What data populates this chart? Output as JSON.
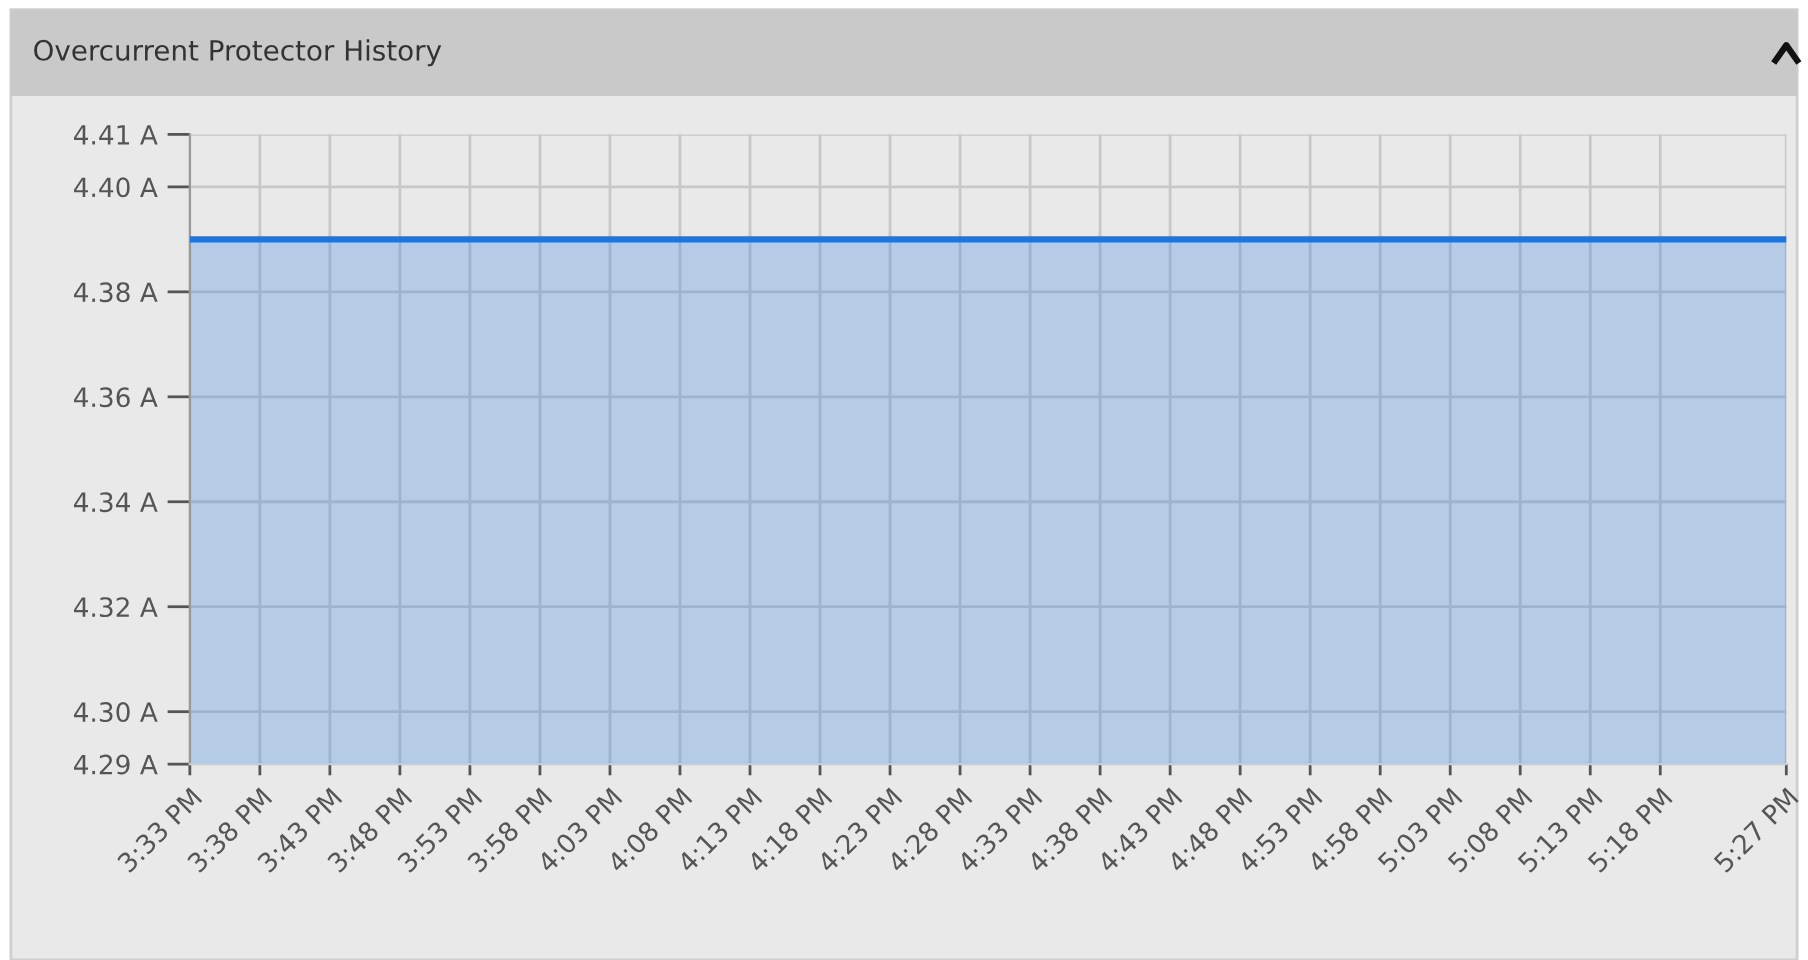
{
  "chart_data": {
    "type": "area",
    "title": "Overcurrent Protector History",
    "x": [
      15.55,
      17.45
    ],
    "series": [
      {
        "color": "#1f74dd",
        "values": [
          4.39,
          4.39
        ]
      }
    ],
    "xlim": [
      15.55,
      17.45
    ],
    "xticks": [
      {
        "value": 15.55,
        "label": "3:33 PM"
      },
      {
        "value": 15.633333,
        "label": "3:38 PM"
      },
      {
        "value": 15.716667,
        "label": "3:43 PM"
      },
      {
        "value": 15.8,
        "label": "3:48 PM"
      },
      {
        "value": 15.883333,
        "label": "3:53 PM"
      },
      {
        "value": 15.966667,
        "label": "3:58 PM"
      },
      {
        "value": 16.05,
        "label": "4:03 PM"
      },
      {
        "value": 16.133333,
        "label": "4:08 PM"
      },
      {
        "value": 16.216667,
        "label": "4:13 PM"
      },
      {
        "value": 16.3,
        "label": "4:18 PM"
      },
      {
        "value": 16.383333,
        "label": "4:23 PM"
      },
      {
        "value": 16.466667,
        "label": "4:28 PM"
      },
      {
        "value": 16.55,
        "label": "4:33 PM"
      },
      {
        "value": 16.633333,
        "label": "4:38 PM"
      },
      {
        "value": 16.716667,
        "label": "4:43 PM"
      },
      {
        "value": 16.8,
        "label": "4:48 PM"
      },
      {
        "value": 16.883333,
        "label": "4:53 PM"
      },
      {
        "value": 16.966667,
        "label": "4:58 PM"
      },
      {
        "value": 17.05,
        "label": "5:03 PM"
      },
      {
        "value": 17.133333,
        "label": "5:08 PM"
      },
      {
        "value": 17.216667,
        "label": "5:13 PM"
      },
      {
        "value": 17.3,
        "label": "5:18 PM"
      },
      {
        "value": 17.45,
        "label": "5:27 PM"
      }
    ],
    "ylim": [
      4.29,
      4.41
    ],
    "yticks": [
      {
        "value": 4.29,
        "label": "4.29 A"
      },
      {
        "value": 4.3,
        "label": "4.30 A"
      },
      {
        "value": 4.32,
        "label": "4.32 A"
      },
      {
        "value": 4.34,
        "label": "4.34 A"
      },
      {
        "value": 4.36,
        "label": "4.36 A"
      },
      {
        "value": 4.38,
        "label": "4.38 A"
      },
      {
        "value": 4.4,
        "label": "4.40 A"
      },
      {
        "value": 4.41,
        "label": "4.41 A"
      }
    ],
    "grid": true
  }
}
